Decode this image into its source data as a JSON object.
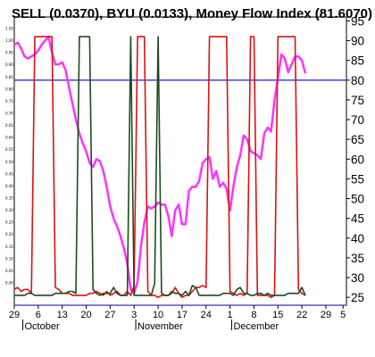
{
  "chart_data": {
    "type": "line",
    "title": "SELL (0.0370), BYU (0.0133), Money Flow Index (81.6070)",
    "ylim": [
      23,
      96
    ],
    "right_ticks": [
      25,
      30,
      35,
      40,
      45,
      50,
      55,
      60,
      65,
      70,
      75,
      80,
      85,
      90,
      95
    ],
    "left_ticks": [
      "0.00",
      "0.05",
      "0.10",
      "0.15",
      "0.20",
      "0.25",
      "0.30",
      "0.35",
      "0.40",
      "0.45",
      "0.50",
      "0.55",
      "0.60",
      "0.65",
      "0.70",
      "0.75",
      "0.80",
      "0.85",
      "0.90",
      "0.95",
      "1.00",
      "1.05"
    ],
    "x_tick_labels": [
      {
        "day": 0,
        "label": "29"
      },
      {
        "day": 7,
        "label": "6"
      },
      {
        "day": 14,
        "label": "13"
      },
      {
        "day": 21,
        "label": "20"
      },
      {
        "day": 28,
        "label": "27"
      },
      {
        "day": 35,
        "label": "3"
      },
      {
        "day": 42,
        "label": "10"
      },
      {
        "day": 49,
        "label": "17"
      },
      {
        "day": 56,
        "label": "24"
      },
      {
        "day": 63,
        "label": "1"
      },
      {
        "day": 70,
        "label": "8"
      },
      {
        "day": 77,
        "label": "15"
      },
      {
        "day": 84,
        "label": "22"
      },
      {
        "day": 91,
        "label": "29"
      },
      {
        "day": 96,
        "label": "5"
      }
    ],
    "month_labels": [
      {
        "day": 3,
        "label": "October"
      },
      {
        "day": 36,
        "label": "November"
      },
      {
        "day": 64,
        "label": "December"
      }
    ],
    "xlim": [
      0,
      97
    ],
    "reference_lines": [
      80,
      23
    ],
    "series": [
      {
        "key": "mfi",
        "color": "#ff33ff",
        "points": [
          [
            0,
            89
          ],
          [
            1,
            89.5
          ],
          [
            2,
            88
          ],
          [
            3,
            86
          ],
          [
            4,
            85.5
          ],
          [
            5,
            86
          ],
          [
            6,
            86.5
          ],
          [
            7,
            87.5
          ],
          [
            8,
            89
          ],
          [
            9,
            90
          ],
          [
            10,
            91
          ],
          [
            11,
            87
          ],
          [
            12,
            84
          ],
          [
            13,
            84
          ],
          [
            14,
            84.5
          ],
          [
            15,
            82.5
          ],
          [
            16,
            78
          ],
          [
            17,
            74
          ],
          [
            18,
            70
          ],
          [
            19,
            66.5
          ],
          [
            20,
            64
          ],
          [
            21,
            62
          ],
          [
            22,
            59
          ],
          [
            23,
            58
          ],
          [
            24,
            60
          ],
          [
            25,
            59.5
          ],
          [
            26,
            57
          ],
          [
            27,
            53
          ],
          [
            28,
            48
          ],
          [
            29,
            45
          ],
          [
            30,
            43
          ],
          [
            31,
            40.5
          ],
          [
            32,
            37.5
          ],
          [
            33,
            33.5
          ],
          [
            34,
            27
          ],
          [
            35,
            26
          ],
          [
            36,
            29
          ],
          [
            37,
            38
          ],
          [
            38,
            44
          ],
          [
            39,
            48
          ],
          [
            40,
            47.5
          ],
          [
            41,
            48
          ],
          [
            42,
            49
          ],
          [
            43,
            48.5
          ],
          [
            44,
            48.5
          ],
          [
            45,
            45.5
          ],
          [
            46,
            40.5
          ],
          [
            47,
            47
          ],
          [
            48,
            48.5
          ],
          [
            49,
            43.5
          ],
          [
            50,
            43.5
          ],
          [
            51,
            52
          ],
          [
            52,
            53
          ],
          [
            53,
            53
          ],
          [
            54,
            54.5
          ],
          [
            55,
            59
          ],
          [
            56,
            60
          ],
          [
            57,
            60.5
          ],
          [
            58,
            55
          ],
          [
            59,
            57
          ],
          [
            60,
            53
          ],
          [
            61,
            54
          ],
          [
            62,
            52.5
          ],
          [
            63,
            47
          ],
          [
            64,
            53
          ],
          [
            65,
            58
          ],
          [
            66,
            61
          ],
          [
            67,
            66
          ],
          [
            68,
            65
          ],
          [
            69,
            62
          ],
          [
            70,
            61.5
          ],
          [
            71,
            61
          ],
          [
            72,
            60
          ],
          [
            73,
            66.5
          ],
          [
            74,
            68
          ],
          [
            75,
            67
          ],
          [
            76,
            75
          ],
          [
            77,
            80.5
          ],
          [
            78,
            86.5
          ],
          [
            79,
            85.5
          ],
          [
            80,
            82
          ],
          [
            81,
            84
          ],
          [
            82,
            86
          ],
          [
            83,
            86
          ],
          [
            84,
            85
          ],
          [
            85,
            81.7
          ]
        ]
      },
      {
        "key": "sell",
        "color": "#dd1111",
        "points": [
          [
            0,
            27
          ],
          [
            1,
            27.5
          ],
          [
            2,
            26.5
          ],
          [
            3,
            27
          ],
          [
            4,
            27
          ],
          [
            5,
            26
          ],
          [
            6,
            91
          ],
          [
            7,
            91
          ],
          [
            8,
            91
          ],
          [
            9,
            91
          ],
          [
            10,
            91
          ],
          [
            11,
            91
          ],
          [
            12,
            27.5
          ],
          [
            13,
            27
          ],
          [
            14,
            26
          ],
          [
            15,
            26
          ],
          [
            16,
            26
          ],
          [
            17,
            25.5
          ],
          [
            18,
            25.5
          ],
          [
            19,
            25.5
          ],
          [
            20,
            25.5
          ],
          [
            21,
            25.5
          ],
          [
            22,
            26
          ],
          [
            23,
            26
          ],
          [
            24,
            26.5
          ],
          [
            25,
            26
          ],
          [
            26,
            25.5
          ],
          [
            27,
            26.5
          ],
          [
            28,
            25.5
          ],
          [
            29,
            26
          ],
          [
            30,
            26.5
          ],
          [
            31,
            25.5
          ],
          [
            32,
            25.5
          ],
          [
            33,
            26.5
          ],
          [
            34,
            25.5
          ],
          [
            35,
            28
          ],
          [
            36,
            91
          ],
          [
            37,
            91
          ],
          [
            38,
            91
          ],
          [
            39,
            26.5
          ],
          [
            40,
            25.5
          ],
          [
            41,
            25.5
          ],
          [
            42,
            25
          ],
          [
            43,
            25.5
          ],
          [
            44,
            25.5
          ],
          [
            45,
            25.5
          ],
          [
            46,
            26
          ],
          [
            47,
            27.5
          ],
          [
            48,
            26
          ],
          [
            49,
            25
          ],
          [
            50,
            25.5
          ],
          [
            51,
            25.5
          ],
          [
            52,
            26.5
          ],
          [
            53,
            27.5
          ],
          [
            54,
            27.5
          ],
          [
            55,
            28
          ],
          [
            56,
            27.5
          ],
          [
            57,
            91
          ],
          [
            58,
            91
          ],
          [
            59,
            91
          ],
          [
            60,
            91
          ],
          [
            61,
            91
          ],
          [
            62,
            91
          ],
          [
            63,
            26.5
          ],
          [
            64,
            26
          ],
          [
            65,
            25.5
          ],
          [
            66,
            26
          ],
          [
            67,
            25.5
          ],
          [
            68,
            26
          ],
          [
            69,
            91
          ],
          [
            70,
            91
          ],
          [
            71,
            25.5
          ],
          [
            72,
            25.5
          ],
          [
            73,
            25.5
          ],
          [
            74,
            25.5
          ],
          [
            75,
            25
          ],
          [
            76,
            25.5
          ],
          [
            77,
            91
          ],
          [
            78,
            91
          ],
          [
            79,
            91
          ],
          [
            80,
            91
          ],
          [
            81,
            91
          ],
          [
            82,
            91
          ],
          [
            83,
            27
          ],
          [
            84,
            26
          ],
          [
            85,
            25.5
          ]
        ]
      },
      {
        "key": "byu",
        "color": "#1e4a1e",
        "points": [
          [
            0,
            25.5
          ],
          [
            1,
            25.5
          ],
          [
            2,
            25.5
          ],
          [
            3,
            25.5
          ],
          [
            4,
            26
          ],
          [
            5,
            26
          ],
          [
            6,
            25.5
          ],
          [
            7,
            25.5
          ],
          [
            8,
            25.5
          ],
          [
            9,
            25.5
          ],
          [
            10,
            25.5
          ],
          [
            11,
            25.5
          ],
          [
            12,
            26
          ],
          [
            13,
            26
          ],
          [
            14,
            26
          ],
          [
            15,
            26
          ],
          [
            16,
            26.5
          ],
          [
            17,
            26.5
          ],
          [
            18,
            26
          ],
          [
            19,
            91
          ],
          [
            20,
            91
          ],
          [
            21,
            91
          ],
          [
            22,
            91
          ],
          [
            23,
            27
          ],
          [
            24,
            26
          ],
          [
            25,
            25.5
          ],
          [
            26,
            26
          ],
          [
            27,
            26
          ],
          [
            28,
            26
          ],
          [
            29,
            27.5
          ],
          [
            30,
            26
          ],
          [
            31,
            25.5
          ],
          [
            32,
            25.5
          ],
          [
            33,
            25.5
          ],
          [
            34,
            91
          ],
          [
            35,
            25.5
          ],
          [
            36,
            25.5
          ],
          [
            37,
            25.5
          ],
          [
            38,
            25.5
          ],
          [
            39,
            25.5
          ],
          [
            40,
            25.5
          ],
          [
            41,
            28.5
          ],
          [
            42,
            91
          ],
          [
            43,
            26
          ],
          [
            44,
            25.5
          ],
          [
            45,
            25.5
          ],
          [
            46,
            26.5
          ],
          [
            47,
            26
          ],
          [
            48,
            26
          ],
          [
            49,
            25.5
          ],
          [
            50,
            26.5
          ],
          [
            51,
            25.5
          ],
          [
            52,
            28
          ],
          [
            53,
            27.5
          ],
          [
            54,
            25.5
          ],
          [
            55,
            25.5
          ],
          [
            56,
            25.5
          ],
          [
            57,
            25.5
          ],
          [
            58,
            25.5
          ],
          [
            59,
            25.5
          ],
          [
            60,
            25.5
          ],
          [
            61,
            26
          ],
          [
            62,
            26
          ],
          [
            63,
            26
          ],
          [
            64,
            25.5
          ],
          [
            65,
            27
          ],
          [
            66,
            27.5
          ],
          [
            67,
            26
          ],
          [
            68,
            26
          ],
          [
            69,
            25.5
          ],
          [
            70,
            25.5
          ],
          [
            71,
            26
          ],
          [
            72,
            26
          ],
          [
            73,
            25.5
          ],
          [
            74,
            26
          ],
          [
            75,
            25.5
          ],
          [
            76,
            25.5
          ],
          [
            77,
            25.5
          ],
          [
            78,
            25.5
          ],
          [
            79,
            25.5
          ],
          [
            80,
            26
          ],
          [
            81,
            26
          ],
          [
            82,
            26
          ],
          [
            83,
            26
          ],
          [
            84,
            27.5
          ],
          [
            85,
            25.5
          ]
        ]
      }
    ]
  }
}
